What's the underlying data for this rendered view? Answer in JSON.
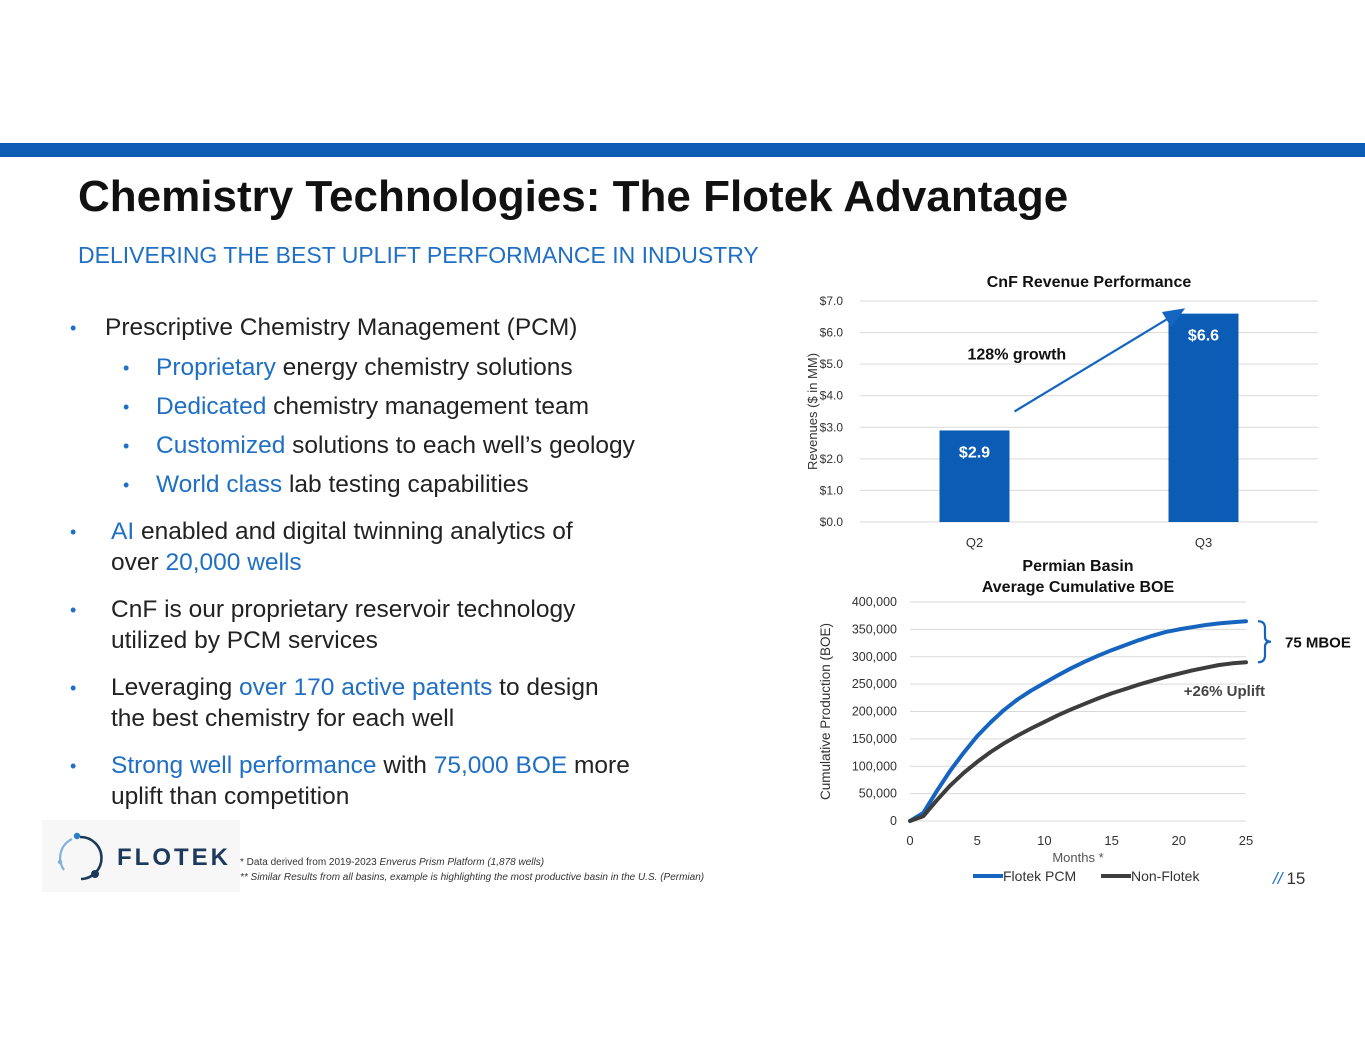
{
  "title": "Chemistry Technologies: The Flotek Advantage",
  "subtitle": "DELIVERING THE BEST UPLIFT PERFORMANCE IN INDUSTRY",
  "bullets": {
    "pcm": "Prescriptive Chemistry Management (PCM)",
    "sub1_hl": "Proprietary",
    "sub1_rest": " energy chemistry solutions",
    "sub2_hl": "Dedicated",
    "sub2_rest": " chemistry management team",
    "sub3_hl": "Customized",
    "sub3_rest": " solutions to each well’s geology",
    "sub4_hl": "World class",
    "sub4_rest": " lab testing capabilities",
    "ai_hl": "AI",
    "ai_rest": " enabled and digital twinning analytics of",
    "ai_line2_a": "over ",
    "ai_line2_hl": "20,000 wells",
    "cnf_line1": "CnF is our proprietary reservoir technology",
    "cnf_line2": "utilized by PCM services",
    "lev_a": "Leveraging ",
    "lev_hl": "over 170 active patents",
    "lev_b": " to design",
    "lev_line2": "the best chemistry for each well",
    "strong_hl": "Strong well performance",
    "strong_a": " with ",
    "strong_hl2": "75,000 BOE",
    "strong_b": " more",
    "strong_line2": "uplift than competition"
  },
  "logo": {
    "text": "FLOTEK"
  },
  "footnotes": {
    "line1_a": "* Data derived from 2019-2023 ",
    "line1_i": "Enverus Prism Platform (1,878 wells)",
    "line2": "** Similar Results from all basins, example is highlighting the most productive basin in the U.S. (Permian)"
  },
  "page": {
    "slashes": "//",
    "number": "15"
  },
  "colors": {
    "accent": "#1f6fc4",
    "band": "#0b5cb5",
    "bar": "#0b5cb5",
    "flotek_line": "#1565c0",
    "nonflotek_line": "#3d3d3d"
  },
  "chart_data": [
    {
      "type": "bar",
      "title": "CnF Revenue Performance",
      "xlabel": "",
      "ylabel": "Revenues ($ in MM)",
      "categories": [
        "Q2",
        "Q3"
      ],
      "values": [
        2.9,
        6.6
      ],
      "data_labels": [
        "$2.9",
        "$6.6"
      ],
      "ylim": [
        0,
        7
      ],
      "yticks": [
        "$0.0",
        "$1.0",
        "$2.0",
        "$3.0",
        "$4.0",
        "$5.0",
        "$6.0",
        "$7.0"
      ],
      "annotation": "128% growth",
      "grid": true
    },
    {
      "type": "line",
      "title_line1": "Permian Basin",
      "title_line2": "Average Cumulative BOE",
      "xlabel": "Months *",
      "ylabel": "Cumulative Production (BOE)",
      "xlim": [
        0,
        25
      ],
      "ylim": [
        0,
        400000
      ],
      "xticks": [
        "0",
        "5",
        "10",
        "15",
        "20",
        "25"
      ],
      "yticks": [
        "0",
        "50,000",
        "100,000",
        "150,000",
        "200,000",
        "250,000",
        "300,000",
        "350,000",
        "400,000"
      ],
      "x": [
        0,
        1,
        2,
        3,
        4,
        5,
        6,
        7,
        8,
        9,
        10,
        11,
        12,
        13,
        14,
        15,
        16,
        17,
        18,
        19,
        20,
        21,
        22,
        23,
        24,
        25
      ],
      "series": [
        {
          "name": "Flotek PCM",
          "values": [
            0,
            15000,
            55000,
            92000,
            125000,
            155000,
            180000,
            203000,
            222000,
            238000,
            252000,
            266000,
            279000,
            291000,
            302000,
            312000,
            321000,
            330000,
            338000,
            345000,
            350000,
            354000,
            358000,
            361000,
            363000,
            365000
          ]
        },
        {
          "name": "Non-Flotek",
          "values": [
            0,
            9000,
            38000,
            65000,
            88000,
            108000,
            126000,
            142000,
            156000,
            169000,
            181000,
            193000,
            204000,
            214000,
            224000,
            233000,
            241000,
            249000,
            256000,
            263000,
            269000,
            275000,
            280000,
            285000,
            288000,
            290000
          ]
        }
      ],
      "annotation_uplift": "+26% Uplift",
      "annotation_gap": "75 MBOE",
      "legend": "bottom",
      "grid": true
    }
  ]
}
